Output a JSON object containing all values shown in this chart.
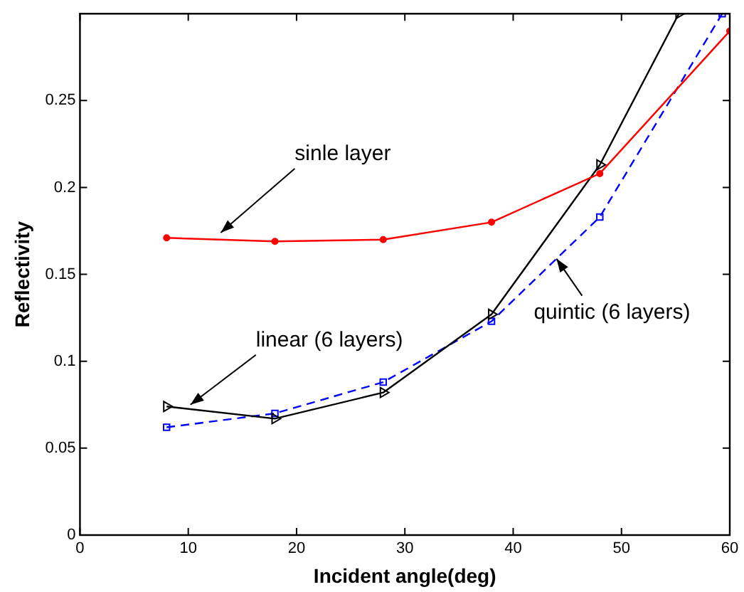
{
  "chart_data": {
    "type": "line",
    "xlabel": "Incident angle(deg)",
    "ylabel": "Reflectivity",
    "xlim": [
      0,
      60
    ],
    "xticks": [
      0,
      10,
      20,
      30,
      40,
      50,
      60
    ],
    "ylim": [
      0,
      0.3
    ],
    "yticks": [
      0,
      0.05,
      0.1,
      0.15,
      0.2,
      0.25
    ],
    "grid": false,
    "legend": false,
    "series": [
      {
        "color": "#ff0000",
        "marker": "circle",
        "line_style": "solid",
        "x": [
          8,
          18,
          28,
          38,
          48,
          60
        ],
        "values": [
          0.171,
          0.169,
          0.17,
          0.18,
          0.208,
          0.29
        ]
      },
      {
        "color": "#000000",
        "marker": "triangle",
        "line_style": "solid",
        "x": [
          8,
          18,
          28,
          38,
          48,
          55.3
        ],
        "values": [
          0.074,
          0.067,
          0.082,
          0.127,
          0.213,
          0.3
        ]
      },
      {
        "color": "#0000ff",
        "marker": "square",
        "line_style": "dashed",
        "x": [
          8,
          18,
          28,
          38,
          48,
          59.3
        ],
        "values": [
          0.062,
          0.07,
          0.088,
          0.123,
          0.183,
          0.3
        ]
      }
    ],
    "annotations": [
      {
        "text": "sinle layer",
        "x": 13,
        "y": 0.174
      },
      {
        "text": "linear (6 layers)",
        "x": 10.2,
        "y": 0.075
      },
      {
        "text": "quintic (6 layers)",
        "x": 44,
        "y": 0.159
      }
    ]
  }
}
